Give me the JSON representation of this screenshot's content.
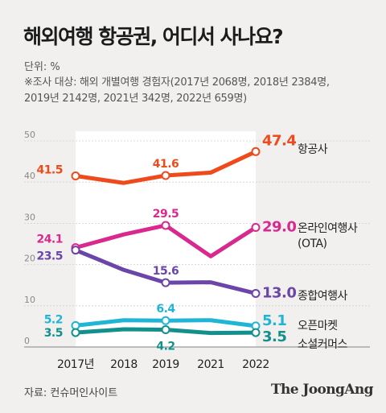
{
  "title": "해외여행 항공권, 어디서 사나요?",
  "unit_label": "단위: %",
  "note_lines": [
    "※조사 대상: 해외 개별여행 경험자(2017년 2068명, 2018년 2384명,",
    "2019년 2142명, 2021년 342명, 2022년 659명)"
  ],
  "source": "자료: 컨슈머인사이트",
  "brand": "The JoongAng",
  "chart_data": {
    "type": "line",
    "x": [
      "2017년",
      "2018",
      "2019",
      "2021",
      "2022"
    ],
    "ylim": [
      0,
      50
    ],
    "yticks": [
      "0",
      "10",
      "20",
      "30",
      "40",
      "50"
    ],
    "grid": true,
    "colors": {
      "항공사": "#ef4a1c",
      "온라인여행사": "#d9298f",
      "종합여행사": "#6b45a8",
      "오픈마켓": "#1fb5d6",
      "소셜커머스": "#11908c"
    },
    "series": [
      {
        "name": "항공사",
        "values": [
          41.5,
          39.8,
          41.6,
          42.3,
          47.4
        ],
        "labels": [
          "41.5",
          "",
          "41.6",
          "",
          "47.4"
        ]
      },
      {
        "name": "온라인여행사(OTA)",
        "name_lines": [
          "온라인여행사",
          "(OTA)"
        ],
        "values": [
          24.1,
          27.3,
          29.5,
          22.0,
          29.0
        ],
        "labels": [
          "24.1",
          "",
          "29.5",
          "",
          "29.0"
        ]
      },
      {
        "name": "종합여행사",
        "values": [
          23.5,
          18.7,
          15.6,
          15.7,
          13.0
        ],
        "labels": [
          "23.5",
          "",
          "15.6",
          "",
          "13.0"
        ]
      },
      {
        "name": "오픈마켓",
        "values": [
          5.2,
          6.5,
          6.4,
          6.5,
          5.1
        ],
        "labels": [
          "5.2",
          "",
          "6.4",
          "",
          "5.1"
        ]
      },
      {
        "name": "소셜커머스",
        "values": [
          3.5,
          4.3,
          4.2,
          3.4,
          3.5
        ],
        "labels": [
          "3.5",
          "",
          "4.2",
          "",
          "3.5"
        ]
      }
    ]
  }
}
